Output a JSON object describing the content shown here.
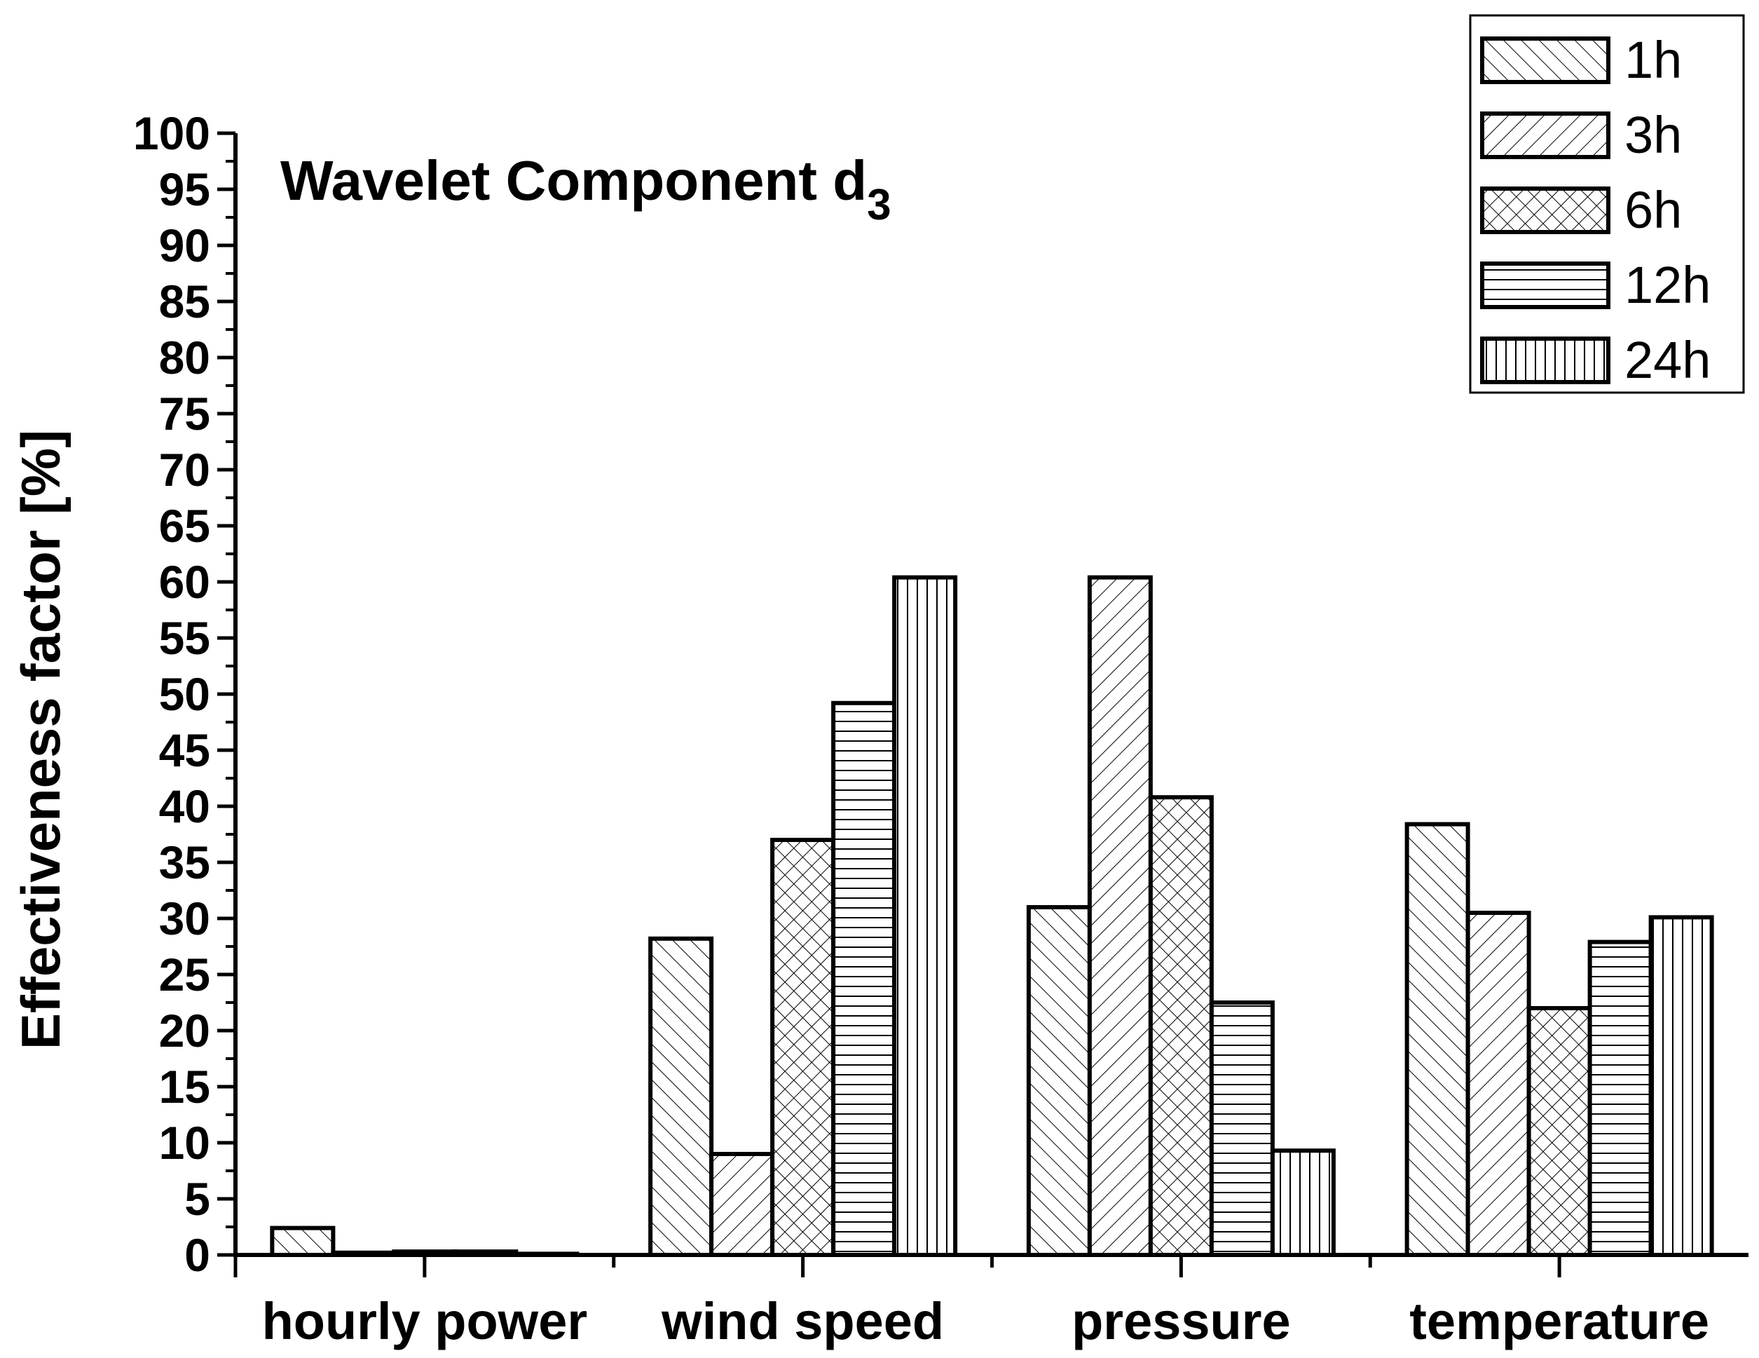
{
  "chart_data": {
    "type": "bar",
    "title": "Wavelet Component d",
    "title_subscript": "3",
    "xlabel": "",
    "ylabel": "Effectiveness factor [%]",
    "ylim": [
      0,
      100
    ],
    "ytick_step": 5,
    "grid": false,
    "legend_position": "top-right",
    "categories": [
      "hourly power",
      "wind speed",
      "pressure",
      "temperature"
    ],
    "series": [
      {
        "name": "1h",
        "pattern": "diag-right",
        "values": [
          2.4,
          28.2,
          31.0,
          38.4
        ]
      },
      {
        "name": "3h",
        "pattern": "diag-left",
        "values": [
          0.2,
          9.0,
          60.4,
          30.5
        ]
      },
      {
        "name": "6h",
        "pattern": "crosshatch",
        "values": [
          0.3,
          37.0,
          40.8,
          22.0
        ]
      },
      {
        "name": "12h",
        "pattern": "horizontal",
        "values": [
          0.3,
          49.2,
          22.5,
          27.9
        ]
      },
      {
        "name": "24h",
        "pattern": "vertical",
        "values": [
          0.1,
          60.4,
          9.3,
          30.1
        ]
      }
    ]
  }
}
